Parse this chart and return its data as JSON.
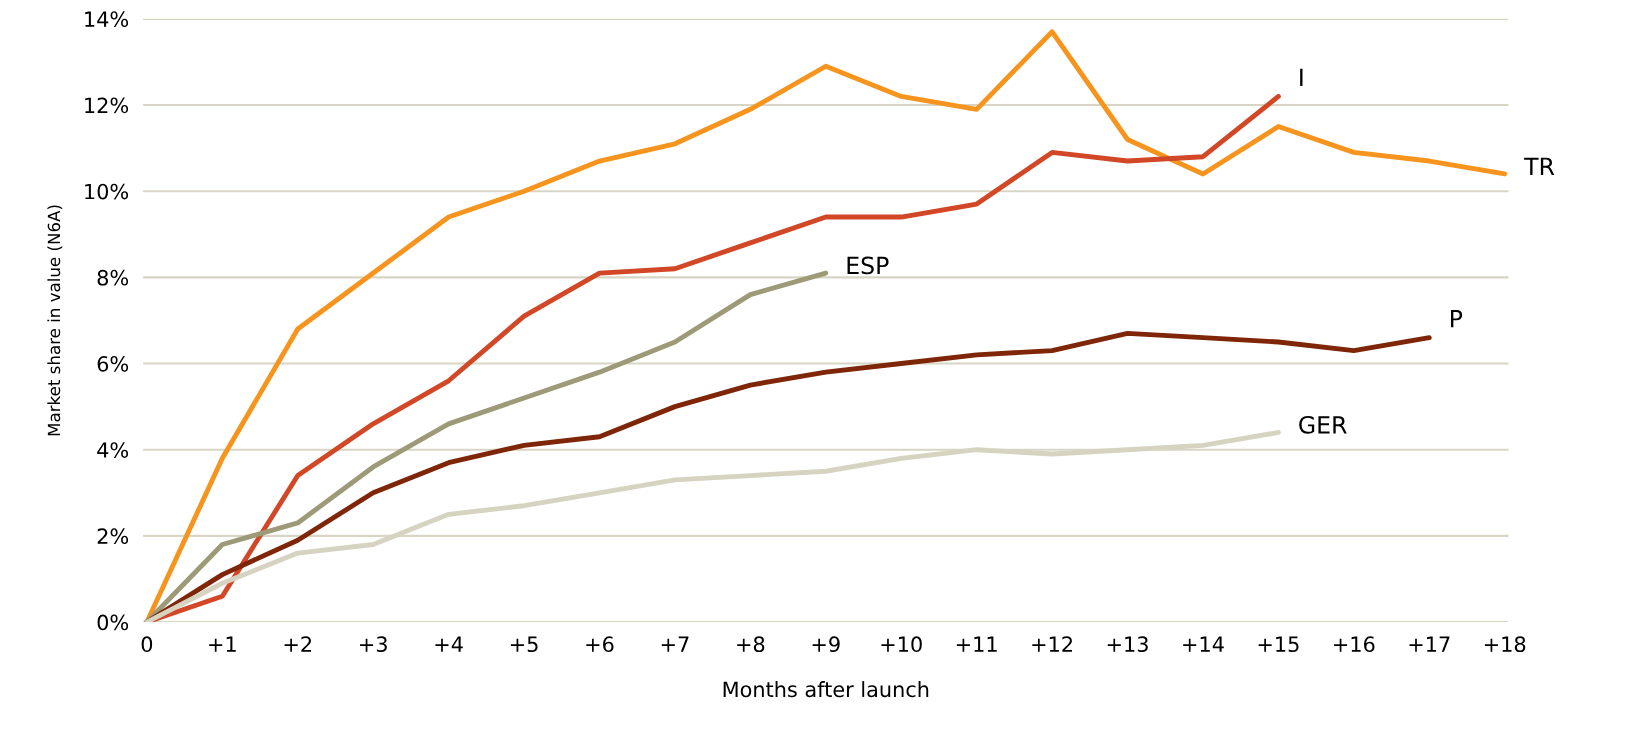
{
  "chart_data": {
    "type": "line",
    "ylabel": "Market share in value (N6A)",
    "xlabel": "Months after launch",
    "categories": [
      "0",
      "+1",
      "+2",
      "+3",
      "+4",
      "+5",
      "+6",
      "+7",
      "+8",
      "+9",
      "+10",
      "+11",
      "+12",
      "+13",
      "+14",
      "+15",
      "+16",
      "+17",
      "+18"
    ],
    "series": [
      {
        "name": "TR",
        "color": "#f7941d",
        "values": [
          0,
          3.8,
          6.8,
          8.1,
          9.4,
          10.0,
          10.7,
          11.1,
          11.9,
          12.9,
          12.2,
          11.9,
          13.7,
          11.2,
          10.4,
          11.5,
          10.9,
          10.7,
          10.4
        ]
      },
      {
        "name": "I",
        "color": "#d24726",
        "values": [
          0,
          0.6,
          3.4,
          4.6,
          5.6,
          7.1,
          8.1,
          8.2,
          8.8,
          9.4,
          9.4,
          9.7,
          10.9,
          10.7,
          10.8,
          12.2,
          null,
          null,
          null
        ]
      },
      {
        "name": "ESP",
        "color": "#9d9a78",
        "values": [
          0,
          1.8,
          2.3,
          3.6,
          4.6,
          5.2,
          5.8,
          6.5,
          7.6,
          8.1,
          null,
          null,
          null,
          null,
          null,
          null,
          null,
          null,
          null
        ]
      },
      {
        "name": "P",
        "color": "#7f2608",
        "values": [
          0,
          1.1,
          1.9,
          3.0,
          3.7,
          4.1,
          4.3,
          5.0,
          5.5,
          5.8,
          6.0,
          6.2,
          6.3,
          6.7,
          6.6,
          6.5,
          6.3,
          6.6,
          null
        ]
      },
      {
        "name": "GER",
        "color": "#d6d3c1",
        "values": [
          0,
          0.9,
          1.6,
          1.8,
          2.5,
          2.7,
          3.0,
          3.3,
          3.4,
          3.5,
          3.8,
          4.0,
          3.9,
          4.0,
          4.1,
          4.4,
          null,
          null,
          null
        ]
      }
    ],
    "ylim": [
      0,
      14
    ],
    "yticks": [
      {
        "value": 0,
        "label": "0%"
      },
      {
        "value": 2,
        "label": "2%"
      },
      {
        "value": 4,
        "label": "4%"
      },
      {
        "value": 6,
        "label": "6%"
      },
      {
        "value": 8,
        "label": "8%"
      },
      {
        "value": 10,
        "label": "10%"
      },
      {
        "value": 12,
        "label": "12%"
      },
      {
        "value": 14,
        "label": "14%"
      }
    ],
    "grid": "y",
    "legend": false,
    "marker": "none",
    "line_style": "solid"
  }
}
